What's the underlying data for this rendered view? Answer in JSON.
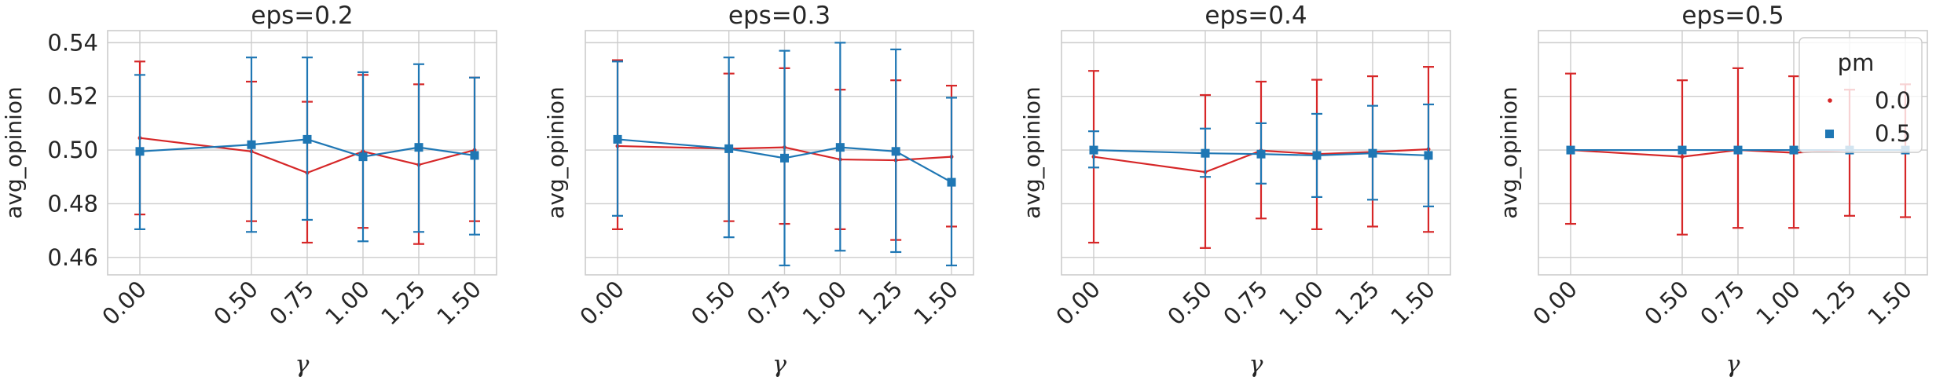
{
  "colors": {
    "pm_0.0": "#d62728",
    "pm_0.5": "#1f77b4",
    "grid": "#cccccc",
    "axes_edge": "#cccccc"
  },
  "legend": {
    "title": "pm",
    "entries": [
      {
        "label": "0.0",
        "marker": "circle",
        "color": "#d62728"
      },
      {
        "label": "0.5",
        "marker": "square",
        "color": "#1f77b4"
      }
    ],
    "placement": "top-right of panel 4"
  },
  "chart_data": [
    {
      "type": "line",
      "title": "eps=0.2",
      "xlabel": "γ",
      "ylabel": "avg_opinion",
      "x": [
        0.0,
        0.5,
        0.75,
        1.0,
        1.25,
        1.5
      ],
      "x_tick_labels": [
        "0.00",
        "0.50",
        "0.75",
        "1.00",
        "1.25",
        "1.50"
      ],
      "ylim": [
        0.4535,
        0.5445
      ],
      "y_ticks": [
        0.46,
        0.48,
        0.5,
        0.52,
        0.54
      ],
      "y_tick_labels": [
        "0.46",
        "0.48",
        "0.50",
        "0.52",
        "0.54"
      ],
      "grid": true,
      "series": [
        {
          "name": "0.0",
          "values": [
            0.5045,
            0.4995,
            0.4915,
            0.4995,
            0.4945,
            0.5
          ],
          "err_low": [
            0.476,
            0.4735,
            0.4655,
            0.471,
            0.465,
            0.4735
          ],
          "err_high": [
            0.533,
            0.5255,
            0.518,
            0.528,
            0.5245,
            0.527
          ]
        },
        {
          "name": "0.5",
          "values": [
            0.4995,
            0.502,
            0.504,
            0.4975,
            0.501,
            0.498
          ],
          "err_low": [
            0.4705,
            0.4695,
            0.474,
            0.466,
            0.4695,
            0.4685
          ],
          "err_high": [
            0.528,
            0.5345,
            0.5345,
            0.529,
            0.532,
            0.527
          ]
        }
      ]
    },
    {
      "type": "line",
      "title": "eps=0.3",
      "xlabel": "γ",
      "ylabel": "avg_opinion",
      "x": [
        0.0,
        0.5,
        0.75,
        1.0,
        1.25,
        1.5
      ],
      "x_tick_labels": [
        "0.00",
        "0.50",
        "0.75",
        "1.00",
        "1.25",
        "1.50"
      ],
      "ylim": [
        0.4535,
        0.5445
      ],
      "y_ticks": [
        0.46,
        0.48,
        0.5,
        0.52,
        0.54
      ],
      "y_tick_labels": [],
      "grid": true,
      "series": [
        {
          "name": "0.0",
          "values": [
            0.5015,
            0.5005,
            0.501,
            0.4965,
            0.4962,
            0.4975
          ],
          "err_low": [
            0.4705,
            0.4735,
            0.4725,
            0.4705,
            0.4665,
            0.4715
          ],
          "err_high": [
            0.5335,
            0.5285,
            0.5305,
            0.5225,
            0.526,
            0.524
          ]
        },
        {
          "name": "0.5",
          "values": [
            0.504,
            0.5005,
            0.497,
            0.501,
            0.4995,
            0.488
          ],
          "err_low": [
            0.4755,
            0.4675,
            0.457,
            0.4625,
            0.462,
            0.457
          ],
          "err_high": [
            0.533,
            0.5345,
            0.537,
            0.54,
            0.5375,
            0.5195
          ]
        }
      ]
    },
    {
      "type": "line",
      "title": "eps=0.4",
      "xlabel": "γ",
      "ylabel": "avg_opinion",
      "x": [
        0.0,
        0.5,
        0.75,
        1.0,
        1.25,
        1.5
      ],
      "x_tick_labels": [
        "0.00",
        "0.50",
        "0.75",
        "1.00",
        "1.25",
        "1.50"
      ],
      "ylim": [
        0.4535,
        0.5445
      ],
      "y_ticks": [
        0.46,
        0.48,
        0.5,
        0.52,
        0.54
      ],
      "y_tick_labels": [],
      "grid": true,
      "series": [
        {
          "name": "0.0",
          "values": [
            0.4975,
            0.4918,
            0.4998,
            0.4985,
            0.4993,
            0.5003
          ],
          "err_low": [
            0.4655,
            0.4635,
            0.4745,
            0.4705,
            0.4715,
            0.4695
          ],
          "err_high": [
            0.5295,
            0.5205,
            0.5255,
            0.5262,
            0.5275,
            0.531
          ]
        },
        {
          "name": "0.5",
          "values": [
            0.5,
            0.4988,
            0.4985,
            0.498,
            0.4988,
            0.498
          ],
          "err_low": [
            0.4935,
            0.49,
            0.4875,
            0.4825,
            0.4815,
            0.479
          ],
          "err_high": [
            0.507,
            0.508,
            0.51,
            0.5135,
            0.5165,
            0.517
          ]
        }
      ]
    },
    {
      "type": "line",
      "title": "eps=0.5",
      "xlabel": "γ",
      "ylabel": "avg_opinion",
      "x": [
        0.0,
        0.5,
        0.75,
        1.0,
        1.25,
        1.5
      ],
      "x_tick_labels": [
        "0.00",
        "0.50",
        "0.75",
        "1.00",
        "1.25",
        "1.50"
      ],
      "ylim": [
        0.4535,
        0.5445
      ],
      "y_ticks": [
        0.46,
        0.48,
        0.5,
        0.52,
        0.54
      ],
      "y_tick_labels": [],
      "grid": true,
      "series": [
        {
          "name": "0.0",
          "values": [
            0.5,
            0.4975,
            0.5,
            0.499,
            0.5,
            0.5
          ],
          "err_low": [
            0.4725,
            0.4685,
            0.471,
            0.471,
            0.4755,
            0.475
          ],
          "err_high": [
            0.5285,
            0.526,
            0.5305,
            0.5275,
            0.5225,
            0.5245
          ]
        },
        {
          "name": "0.5",
          "values": [
            0.5,
            0.5,
            0.5,
            0.5,
            0.5,
            0.5
          ],
          "err_low": [
            0.5,
            0.5,
            0.5,
            0.5,
            0.5,
            0.5
          ],
          "err_high": [
            0.5,
            0.5,
            0.5,
            0.5,
            0.5,
            0.5
          ]
        }
      ]
    }
  ]
}
